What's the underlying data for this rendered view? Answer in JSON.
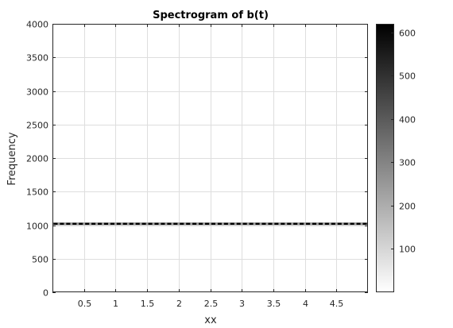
{
  "chart_data": {
    "type": "heatmap",
    "title": "Spectrogram of b(t)",
    "xlabel": "xx",
    "ylabel": "Frequency",
    "xlim": [
      0,
      5
    ],
    "ylim": [
      0,
      4000
    ],
    "x_ticks": [
      0.5,
      1,
      1.5,
      2,
      2.5,
      3,
      3.5,
      4,
      4.5
    ],
    "x_tick_labels": [
      "0.5",
      "1",
      "1.5",
      "2",
      "2.5",
      "3",
      "3.5",
      "4",
      "4.5"
    ],
    "y_ticks": [
      0,
      500,
      1000,
      1500,
      2000,
      2500,
      3000,
      3500,
      4000
    ],
    "y_tick_labels": [
      "0",
      "500",
      "1000",
      "1500",
      "2000",
      "2500",
      "3000",
      "3500",
      "4000"
    ],
    "grid": true,
    "colormap": "gray-reversed",
    "color_min": "#ffffff",
    "color_max": "#000000",
    "colorbar": {
      "range": [
        0,
        620
      ],
      "ticks": [
        100,
        200,
        300,
        400,
        500,
        600
      ],
      "tick_labels": [
        "100",
        "200",
        "300",
        "400",
        "500",
        "600"
      ],
      "placement": "right"
    },
    "band": {
      "frequency": 1020,
      "frequency_low": 1000,
      "frequency_high": 1040,
      "segments": 50,
      "segment_peak_value": 620,
      "segment_edge_value": 250
    }
  }
}
